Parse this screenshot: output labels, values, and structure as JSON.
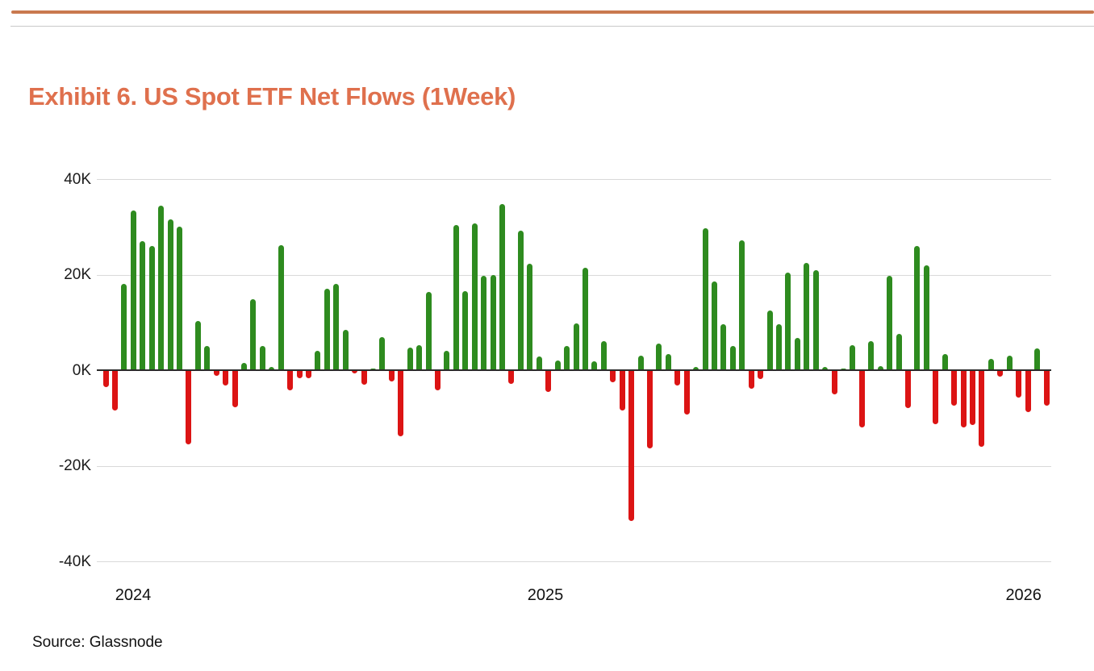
{
  "page": {
    "title": "Exhibit 6. US Spot ETF Net Flows (1Week)",
    "title_color": "#DF704D",
    "rule_color": "#C9794F",
    "source_label": "Source: Glassnode"
  },
  "chart_data": {
    "type": "bar",
    "title": "US Spot ETF Net Flows (1Week)",
    "unit": "K shares/coins (thousands)",
    "positive_color": "#2E8B1F",
    "negative_color": "#DC1414",
    "grid": "horizontal",
    "ylim": [
      -40,
      40
    ],
    "y_ticks": [
      "40K",
      "20K",
      "0K",
      "-20K",
      "-40K"
    ],
    "x_tick_labels": [
      {
        "label": "2024",
        "pos": 0.038
      },
      {
        "label": "2025",
        "pos": 0.47
      },
      {
        "label": "2026",
        "pos": 0.971
      }
    ],
    "values": [
      -3.5,
      -8.5,
      18,
      33.5,
      27,
      26,
      34.5,
      31.5,
      30,
      -15.5,
      10.3,
      5,
      -1.2,
      -3.2,
      -7.7,
      1.6,
      14.8,
      5.1,
      0.6,
      26.2,
      -4.2,
      -1.7,
      -1.7,
      4.1,
      17,
      18,
      8.4,
      -0.7,
      -3,
      0.3,
      6.9,
      -2.4,
      -13.9,
      4.8,
      5.2,
      16.3,
      -4.3,
      4.1,
      30.3,
      16.6,
      30.8,
      19.8,
      20,
      34.7,
      -2.8,
      29.2,
      22.2,
      2.8,
      -4.5,
      2,
      5.1,
      9.8,
      21.5,
      1.9,
      6.1,
      -2.5,
      -8.5,
      -31.5,
      3.1,
      -16.4,
      5.5,
      3.3,
      -3.2,
      -9.2,
      0.6,
      29.7,
      18.5,
      9.6,
      5.1,
      27.1,
      -3.8,
      -1.8,
      12.5,
      9.6,
      20.5,
      6.7,
      22.5,
      21,
      0.7,
      -5.1,
      0.4,
      5.2,
      -12,
      6.1,
      0.9,
      19.7,
      7.6,
      -7.9,
      26,
      22,
      -11.3,
      3.4,
      -7.5,
      -12,
      -11.4,
      -16,
      2.4,
      -1.3,
      3.1,
      -5.7,
      -8.8,
      4.5,
      -7.4
    ]
  }
}
